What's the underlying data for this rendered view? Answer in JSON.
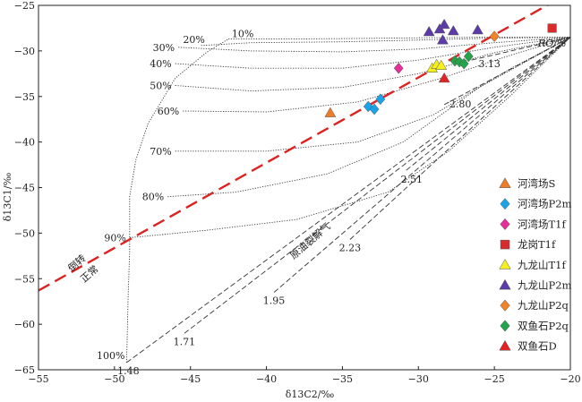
{
  "chart_data": {
    "type": "scatter",
    "xlabel": "δ13C2/‰",
    "ylabel": "δ13C1/‰",
    "xlim": [
      -55,
      -20
    ],
    "ylim": [
      -65,
      -25
    ],
    "xticks": [
      -55,
      -50,
      -45,
      -40,
      -35,
      -30,
      -25,
      -20
    ],
    "yticks": [
      -65,
      -60,
      -55,
      -50,
      -45,
      -40,
      -35,
      -30,
      -25
    ],
    "grid": false,
    "legend_position": "right",
    "series": [
      {
        "name": "河湾场S",
        "marker": "triangle",
        "color": "#ee7d2a",
        "points": [
          [
            -35.8,
            -36.8
          ]
        ]
      },
      {
        "name": "河湾场P2m",
        "marker": "diamond",
        "color": "#1ba3e8",
        "points": [
          [
            -33.3,
            -36.1
          ],
          [
            -32.9,
            -36.4
          ],
          [
            -32.5,
            -35.3
          ]
        ]
      },
      {
        "name": "河湾场T1f",
        "marker": "diamond",
        "color": "#e52f9a",
        "points": [
          [
            -31.3,
            -31.9
          ]
        ]
      },
      {
        "name": "龙岗T1f",
        "marker": "square",
        "color": "#d92b2b",
        "points": [
          [
            -21.2,
            -27.5
          ]
        ]
      },
      {
        "name": "九龙山T1f",
        "marker": "triangle",
        "color": "#f5ef1d",
        "points": [
          [
            -29.1,
            -31.9
          ],
          [
            -28.8,
            -31.5
          ],
          [
            -28.5,
            -31.6
          ]
        ]
      },
      {
        "name": "九龙山P2m",
        "marker": "triangle",
        "color": "#5c3aa8",
        "points": [
          [
            -29.3,
            -27.9
          ],
          [
            -28.6,
            -27.6
          ],
          [
            -28.3,
            -27.1
          ],
          [
            -27.7,
            -27.8
          ],
          [
            -28.4,
            -28.8
          ],
          [
            -26.1,
            -27.7
          ]
        ]
      },
      {
        "name": "九龙山P2q",
        "marker": "diamond",
        "color": "#ef8428",
        "points": [
          [
            -25.0,
            -28.4
          ]
        ]
      },
      {
        "name": "双鱼石P2q",
        "marker": "diamond",
        "color": "#24a34a",
        "points": [
          [
            -27.6,
            -31.1
          ],
          [
            -27.3,
            -31.2
          ],
          [
            -27.0,
            -31.4
          ],
          [
            -26.7,
            -30.6
          ]
        ]
      },
      {
        "name": "双鱼石D",
        "marker": "triangle",
        "color": "#e32222",
        "points": [
          [
            -28.3,
            -33.0
          ]
        ]
      }
    ],
    "reference_line": {
      "label_upper": "倒转",
      "label_lower": "正常",
      "points": [
        [
          -55,
          -56.3
        ],
        [
          -21,
          -24.5
        ]
      ],
      "color": "#dd2222"
    },
    "crack_label": "原油裂解气",
    "ro_label": "RO/%",
    "ro_lines": [
      {
        "label": "1.48",
        "points": [
          [
            -49.2,
            -64.2
          ],
          [
            -20,
            -28.5
          ]
        ]
      },
      {
        "label": "1.71",
        "points": [
          [
            -45.4,
            -61.0
          ],
          [
            -20,
            -28.5
          ]
        ]
      },
      {
        "label": "1.95",
        "points": [
          [
            -39.5,
            -56.5
          ],
          [
            -20,
            -28.5
          ]
        ]
      },
      {
        "label": "2.23",
        "points": [
          [
            -34.5,
            -50.7
          ],
          [
            -20,
            -28.5
          ]
        ]
      },
      {
        "label": "2.51",
        "points": [
          [
            -30.8,
            -43.1
          ],
          [
            -20,
            -28.5
          ]
        ]
      },
      {
        "label": "2.80",
        "points": [
          [
            -28.3,
            -35.9
          ],
          [
            -20,
            -28.5
          ]
        ]
      },
      {
        "label": "3.13",
        "points": [
          [
            -26.5,
            -31.0
          ],
          [
            -20,
            -28.5
          ]
        ]
      }
    ],
    "mixing_curves": [
      {
        "label": "100%",
        "points": [
          [
            -49.2,
            -64.2
          ],
          [
            -49.1,
            -57
          ],
          [
            -49.0,
            -52
          ],
          [
            -49.0,
            -46
          ],
          [
            -48.6,
            -42
          ],
          [
            -47.8,
            -38
          ],
          [
            -46.0,
            -33
          ],
          [
            -43.9,
            -30.1
          ],
          [
            -42.5,
            -28.7
          ]
        ]
      },
      {
        "label": "90%",
        "points": [
          [
            -49.0,
            -50.5
          ],
          [
            -44,
            -49.7
          ],
          [
            -38,
            -48.5
          ],
          [
            -32,
            -45.5
          ],
          [
            -28,
            -41
          ],
          [
            -24,
            -35
          ],
          [
            -20,
            -28.5
          ]
        ]
      },
      {
        "label": "80%",
        "points": [
          [
            -46.5,
            -46.0
          ],
          [
            -42,
            -45.5
          ],
          [
            -36,
            -43.5
          ],
          [
            -31,
            -40
          ],
          [
            -26,
            -34
          ],
          [
            -20,
            -28.5
          ]
        ]
      },
      {
        "label": "70%",
        "points": [
          [
            -46.0,
            -41.0
          ],
          [
            -40,
            -41.0
          ],
          [
            -34,
            -40
          ],
          [
            -29,
            -37
          ],
          [
            -24,
            -32
          ],
          [
            -20,
            -28.5
          ]
        ]
      },
      {
        "label": "60%",
        "points": [
          [
            -45.5,
            -36.6
          ],
          [
            -40,
            -36.7
          ],
          [
            -34,
            -35.6
          ],
          [
            -28.5,
            -33.0
          ],
          [
            -24,
            -30.5
          ],
          [
            -20,
            -28.5
          ]
        ]
      },
      {
        "label": "50%",
        "points": [
          [
            -46.0,
            -33.8
          ],
          [
            -41,
            -34.4
          ],
          [
            -35,
            -34
          ],
          [
            -30,
            -32.5
          ],
          [
            -25,
            -30.2
          ],
          [
            -20,
            -28.5
          ]
        ]
      },
      {
        "label": "40%",
        "points": [
          [
            -46.0,
            -31.4
          ],
          [
            -41,
            -31.9
          ],
          [
            -35,
            -31.9
          ],
          [
            -30,
            -31.0
          ],
          [
            -25,
            -29.6
          ],
          [
            -20,
            -28.5
          ]
        ]
      },
      {
        "label": "30%",
        "points": [
          [
            -45.8,
            -29.6
          ],
          [
            -41,
            -30.0
          ],
          [
            -35,
            -30.1
          ],
          [
            -30,
            -29.8
          ],
          [
            -25,
            -29.1
          ],
          [
            -20,
            -28.5
          ]
        ]
      },
      {
        "label": "20%",
        "points": [
          [
            -44.3,
            -29.4
          ],
          [
            -41,
            -29.1
          ],
          [
            -35,
            -29.0
          ],
          [
            -30,
            -28.8
          ],
          [
            -25,
            -28.6
          ],
          [
            -20,
            -28.5
          ]
        ]
      },
      {
        "label": "10%",
        "points": [
          [
            -42.5,
            -28.7
          ],
          [
            -38,
            -28.7
          ],
          [
            -32,
            -28.6
          ],
          [
            -26,
            -28.5
          ],
          [
            -20,
            -28.5
          ]
        ]
      }
    ]
  }
}
